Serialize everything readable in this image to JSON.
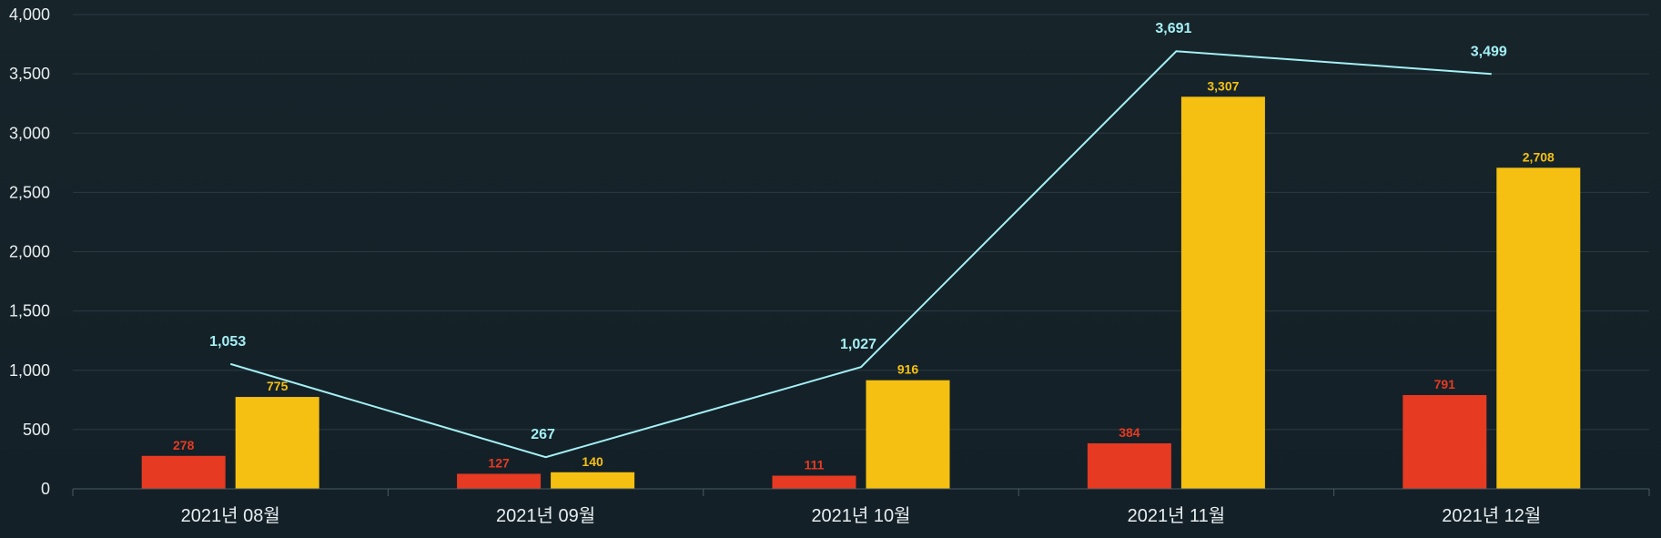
{
  "chart_data": {
    "type": "bar",
    "categories": [
      "2021년 08월",
      "2021년 09월",
      "2021년 10월",
      "2021년 11월",
      "2021년 12월"
    ],
    "series": [
      {
        "type": "bar",
        "color": "#e63a22",
        "values": [
          278,
          127,
          111,
          384,
          791
        ]
      },
      {
        "type": "bar",
        "color": "#f5c011",
        "values": [
          775,
          140,
          916,
          3307,
          2708
        ]
      },
      {
        "type": "line",
        "color": "#a4f0f5",
        "values": [
          1053,
          267,
          1027,
          3691,
          3499
        ]
      }
    ],
    "ylim": [
      0,
      4000
    ],
    "yticks": [
      "0",
      "500",
      "1,000",
      "1,500",
      "2,000",
      "2,500",
      "3,000",
      "3,500",
      "4,000"
    ],
    "grid": true,
    "legend": "none",
    "colors": {
      "background": "#17242a",
      "grid": "#2c3a41",
      "axis": "#4a5a62",
      "text": "#e8eef0"
    }
  }
}
